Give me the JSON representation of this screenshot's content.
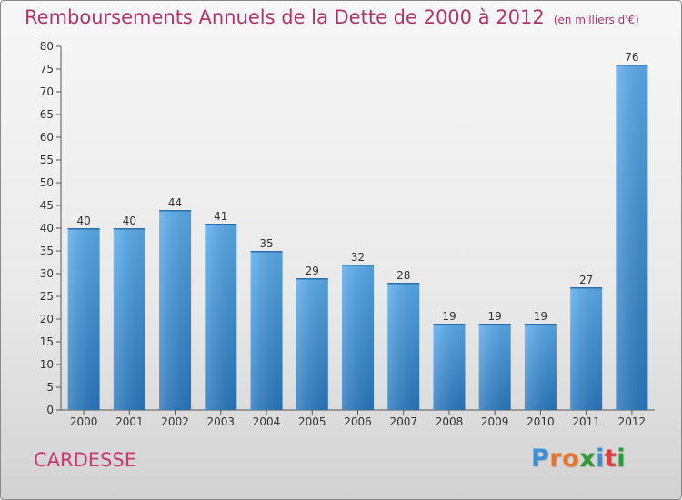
{
  "header": {
    "title": "Remboursements Annuels de la Dette de 2000 à 2012",
    "unit": "(en milliers d'€)"
  },
  "commune": "CARDESSE",
  "logo": {
    "letters": [
      "P",
      "r",
      "o",
      "x",
      "i",
      "t",
      "i"
    ],
    "colors": [
      "#3a8fd6",
      "#e8742a",
      "#e8742a",
      "#2f9a3a",
      "#3a8fd6",
      "#e03c3c",
      "#2f9a3a"
    ]
  },
  "chart_data": {
    "type": "bar",
    "title": "Remboursements Annuels de la Dette de 2000 à 2012",
    "categories": [
      "2000",
      "2001",
      "2002",
      "2003",
      "2004",
      "2005",
      "2006",
      "2007",
      "2008",
      "2009",
      "2010",
      "2011",
      "2012"
    ],
    "values": [
      40,
      40,
      44,
      41,
      35,
      29,
      32,
      28,
      19,
      19,
      19,
      27,
      76
    ],
    "ylim": [
      0,
      80
    ],
    "yticks": [
      0,
      5,
      10,
      15,
      20,
      25,
      30,
      35,
      40,
      45,
      50,
      55,
      60,
      65,
      70,
      75,
      80
    ],
    "grid": false,
    "bar_color": "#3f97df"
  }
}
